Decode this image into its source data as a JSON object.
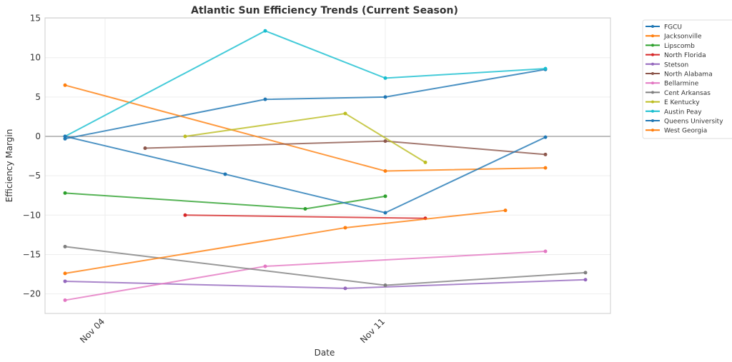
{
  "chart_data": {
    "type": "line",
    "title": "Atlantic Sun Efficiency Trends (Current Season)",
    "xlabel": "Date",
    "ylabel": "Efficiency Margin",
    "ylim": [
      -22.5,
      15
    ],
    "xlim": [
      "Nov 02",
      "Nov 18"
    ],
    "yticks": [
      -20,
      -15,
      -10,
      -5,
      0,
      5,
      10,
      15
    ],
    "xticks": [
      "Nov 04",
      "Nov 11"
    ],
    "grid": true,
    "legend_position": "outside-top-right",
    "series": [
      {
        "name": "FGCU",
        "color": "#1f77b4",
        "x": [
          "Nov 03",
          "Nov 08",
          "Nov 11",
          "Nov 15"
        ],
        "y": [
          -0.3,
          4.7,
          5.0,
          8.5
        ]
      },
      {
        "name": "Jacksonville",
        "color": "#ff7f0e",
        "x": [
          "Nov 03",
          "Nov 11",
          "Nov 15"
        ],
        "y": [
          6.5,
          -4.4,
          -4.0
        ]
      },
      {
        "name": "Lipscomb",
        "color": "#2ca02c",
        "x": [
          "Nov 03",
          "Nov 09",
          "Nov 11"
        ],
        "y": [
          -7.2,
          -9.2,
          -7.6
        ]
      },
      {
        "name": "North Florida",
        "color": "#d62728",
        "x": [
          "Nov 06",
          "Nov 12"
        ],
        "y": [
          -10.0,
          -10.4
        ]
      },
      {
        "name": "Stetson",
        "color": "#9467bd",
        "x": [
          "Nov 03",
          "Nov 10",
          "Nov 16"
        ],
        "y": [
          -18.4,
          -19.3,
          -18.2
        ]
      },
      {
        "name": "North Alabama",
        "color": "#8c564b",
        "x": [
          "Nov 05",
          "Nov 11",
          "Nov 15"
        ],
        "y": [
          -1.5,
          -0.6,
          -2.3
        ]
      },
      {
        "name": "Bellarmine",
        "color": "#e377c2",
        "x": [
          "Nov 03",
          "Nov 08",
          "Nov 15"
        ],
        "y": [
          -20.8,
          -16.5,
          -14.6
        ]
      },
      {
        "name": "Cent Arkansas",
        "color": "#7f7f7f",
        "x": [
          "Nov 03",
          "Nov 11",
          "Nov 16"
        ],
        "y": [
          -14.0,
          -18.9,
          -17.3
        ]
      },
      {
        "name": "E Kentucky",
        "color": "#bcbd22",
        "x": [
          "Nov 06",
          "Nov 10",
          "Nov 12"
        ],
        "y": [
          0.0,
          2.9,
          -3.3
        ]
      },
      {
        "name": "Austin Peay",
        "color": "#17becf",
        "x": [
          "Nov 03",
          "Nov 08",
          "Nov 11",
          "Nov 15"
        ],
        "y": [
          0.0,
          13.4,
          7.4,
          8.6
        ]
      },
      {
        "name": "Queens University",
        "color": "#1f77b4",
        "x": [
          "Nov 03",
          "Nov 07",
          "Nov 11",
          "Nov 15"
        ],
        "y": [
          0.0,
          -4.8,
          -9.7,
          -0.1
        ]
      },
      {
        "name": "West Georgia",
        "color": "#ff7f0e",
        "x": [
          "Nov 03",
          "Nov 10",
          "Nov 14"
        ],
        "y": [
          -17.4,
          -11.6,
          -9.4
        ]
      }
    ]
  }
}
